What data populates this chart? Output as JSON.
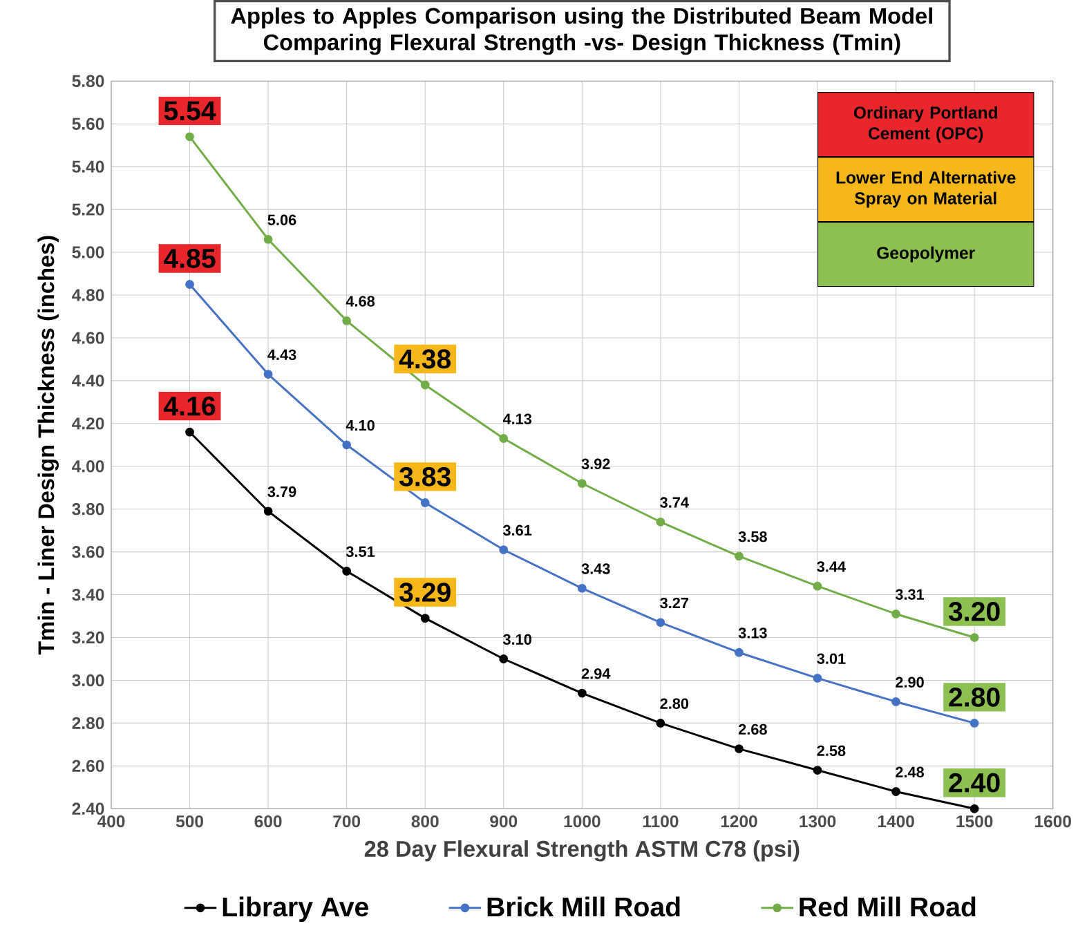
{
  "chart_data": {
    "type": "line",
    "title": "Apples to Apples Comparison using the Distributed Beam Model Comparing Flexural Strength -vs- Design Thickness (Tmin)",
    "xlabel": "28 Day Flexural Strength ASTM C78 (psi)",
    "ylabel": "Tmin - Liner Design Thickness (inches)",
    "x": [
      500,
      600,
      700,
      800,
      900,
      1000,
      1100,
      1200,
      1300,
      1400,
      1500
    ],
    "series": [
      {
        "name": "Library Ave",
        "color": "#000000",
        "values": [
          4.16,
          3.79,
          3.51,
          3.29,
          3.1,
          2.94,
          2.8,
          2.68,
          2.58,
          2.48,
          2.4
        ],
        "value_labels": [
          "4.16",
          "3.79",
          "3.51",
          "3.29",
          "3.10",
          "2.94",
          "2.80",
          "2.68",
          "2.58",
          "2.48",
          "2.40"
        ]
      },
      {
        "name": "Brick Mill Road",
        "color": "#4472c4",
        "values": [
          4.85,
          4.43,
          4.1,
          3.83,
          3.61,
          3.43,
          3.27,
          3.13,
          3.01,
          2.9,
          2.8
        ],
        "value_labels": [
          "4.85",
          "4.43",
          "4.10",
          "3.83",
          "3.61",
          "3.43",
          "3.27",
          "3.13",
          "3.01",
          "2.90",
          "2.80"
        ]
      },
      {
        "name": "Red Mill Road",
        "color": "#70ad47",
        "values": [
          5.54,
          5.06,
          4.68,
          4.38,
          4.13,
          3.92,
          3.74,
          3.58,
          3.44,
          3.31,
          3.2
        ],
        "value_labels": [
          "5.54",
          "5.06",
          "4.68",
          "4.38",
          "4.13",
          "3.92",
          "3.74",
          "3.58",
          "3.44",
          "3.31",
          "3.20"
        ]
      }
    ],
    "annotations": [
      "Ordinary Portland Cement (OPC)",
      "Lower End Alternative Spray on Material",
      "Geopolymer"
    ],
    "xlim": [
      400,
      1600
    ],
    "xticks": [
      400,
      500,
      600,
      700,
      800,
      900,
      1000,
      1100,
      1200,
      1300,
      1400,
      1500,
      1600
    ],
    "ylim": [
      2.4,
      5.8
    ],
    "yticks": [
      {
        "value": 2.4,
        "label": "2.40"
      },
      {
        "value": 2.6,
        "label": "2.60"
      },
      {
        "value": 2.8,
        "label": "2.80"
      },
      {
        "value": 3.0,
        "label": "3.00"
      },
      {
        "value": 3.2,
        "label": "3.20"
      },
      {
        "value": 3.4,
        "label": "3.40"
      },
      {
        "value": 3.6,
        "label": "3.60"
      },
      {
        "value": 3.8,
        "label": "3.80"
      },
      {
        "value": 4.0,
        "label": "4.00"
      },
      {
        "value": 4.2,
        "label": "4.20"
      },
      {
        "value": 4.4,
        "label": "4.40"
      },
      {
        "value": 4.6,
        "label": "4.60"
      },
      {
        "value": 4.8,
        "label": "4.80"
      },
      {
        "value": 5.0,
        "label": "5.00"
      },
      {
        "value": 5.2,
        "label": "5.20"
      },
      {
        "value": 5.4,
        "label": "5.40"
      },
      {
        "value": 5.6,
        "label": "5.60"
      },
      {
        "value": 5.8,
        "label": "5.80"
      }
    ],
    "grid": true,
    "legend": "bottom",
    "marker": "circle",
    "line_style": "solid"
  }
}
